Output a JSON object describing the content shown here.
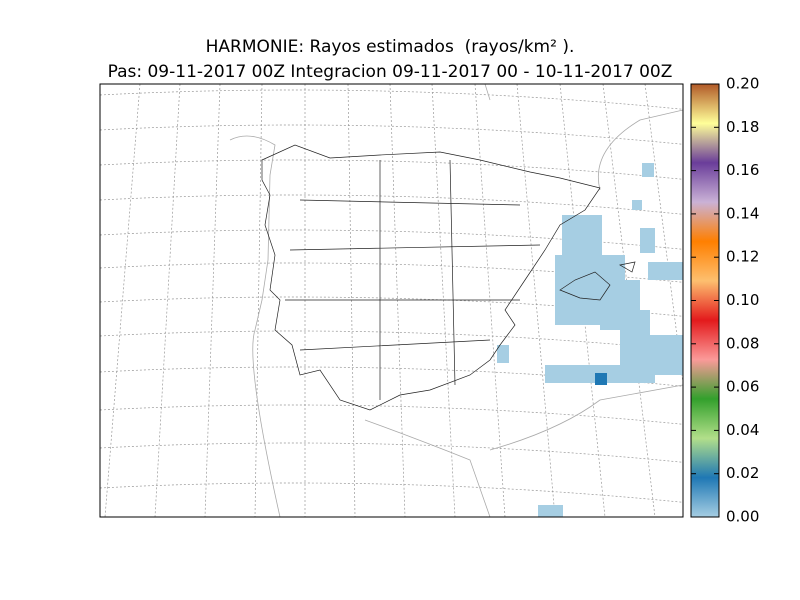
{
  "title": "HARMONIE: Rayos estimados  (rayos/km² ).",
  "subtitle": "Pas: 09-11-2017 00Z Integracion 09-11-2017 00 - 10-11-2017 00Z",
  "colorbar": {
    "lim": [
      0,
      0.2
    ],
    "ticks": [
      {
        "value": 0,
        "label": "0.00"
      },
      {
        "value": 0.02,
        "label": "0.02"
      },
      {
        "value": 0.04,
        "label": "0.04"
      },
      {
        "value": 0.06,
        "label": "0.06"
      },
      {
        "value": 0.08,
        "label": "0.08"
      },
      {
        "value": 0.1,
        "label": "0.10"
      },
      {
        "value": 0.12,
        "label": "0.12"
      },
      {
        "value": 0.14,
        "label": "0.14"
      },
      {
        "value": 0.16,
        "label": "0.16"
      },
      {
        "value": 0.18,
        "label": "0.18"
      },
      {
        "value": 0.2,
        "label": "0.20"
      }
    ],
    "colors": [
      "#a6cee3",
      "#1f78b4",
      "#b2df8a",
      "#33a02c",
      "#fb9a99",
      "#e31a1c",
      "#fdbf6f",
      "#ff7f00",
      "#cab2d6",
      "#6a3d9a",
      "#ffff99",
      "#b15928"
    ]
  }
}
